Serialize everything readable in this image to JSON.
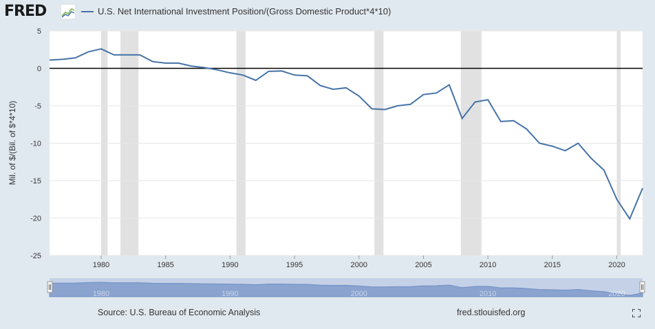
{
  "header": {
    "logo_text": "FRED",
    "series_title": "U.S. Net International Investment Position/(Gross Domestic Product*4*10)"
  },
  "colors": {
    "series": "#4572a7",
    "recession": "#e1e1e1",
    "zero_line": "#000000",
    "grid": "#e6e6e6",
    "navigator": "#8aa3cf"
  },
  "footer": {
    "source": "Source: U.S. Bureau of Economic Analysis",
    "url": "fred.stlouisfed.org",
    "fullscreen_icon": "expand-icon"
  },
  "chart_data": {
    "type": "line",
    "title": "",
    "xlabel": "",
    "ylabel": "Mil. of $/(Bil. of $*4*10)",
    "xlim": [
      1976,
      2022
    ],
    "ylim": [
      -25,
      5
    ],
    "yticks": [
      5,
      0,
      -5,
      -10,
      -15,
      -20,
      -25
    ],
    "xticks": [
      1980,
      1985,
      1990,
      1995,
      2000,
      2005,
      2010,
      2015,
      2020
    ],
    "navigator_labels": [
      "1980",
      "1990",
      "2000",
      "2010",
      "2020"
    ],
    "grid": true,
    "recessions": [
      [
        1980.0,
        1980.5
      ],
      [
        1981.5,
        1982.9
      ],
      [
        1990.5,
        1991.2
      ],
      [
        2001.2,
        2001.9
      ],
      [
        2007.9,
        2009.5
      ],
      [
        2020.0,
        2020.3
      ]
    ],
    "series": [
      {
        "name": "U.S. Net International Investment Position/(Gross Domestic Product*4*10)",
        "x": [
          1976,
          1977,
          1978,
          1979,
          1980,
          1981,
          1982,
          1983,
          1984,
          1985,
          1986,
          1987,
          1988,
          1989,
          1990,
          1991,
          1992,
          1993,
          1994,
          1995,
          1996,
          1997,
          1998,
          1999,
          2000,
          2001,
          2002,
          2003,
          2004,
          2005,
          2006,
          2007,
          2008,
          2009,
          2010,
          2011,
          2012,
          2013,
          2014,
          2015,
          2016,
          2017,
          2018,
          2019,
          2020,
          2021,
          2022
        ],
        "values": [
          1.1,
          1.2,
          1.4,
          2.2,
          2.6,
          1.8,
          1.8,
          1.8,
          0.9,
          0.7,
          0.7,
          0.3,
          0.1,
          -0.2,
          -0.6,
          -0.9,
          -1.6,
          -0.4,
          -0.35,
          -0.9,
          -1.0,
          -2.3,
          -2.8,
          -2.6,
          -3.7,
          -5.4,
          -5.5,
          -5.0,
          -4.8,
          -3.5,
          -3.3,
          -2.2,
          -6.7,
          -4.5,
          -4.2,
          -7.1,
          -7.0,
          -8.1,
          -10.0,
          -10.4,
          -11.0,
          -10.0,
          -12.0,
          -13.6,
          -17.5,
          -20.1,
          -16.0
        ]
      }
    ]
  }
}
